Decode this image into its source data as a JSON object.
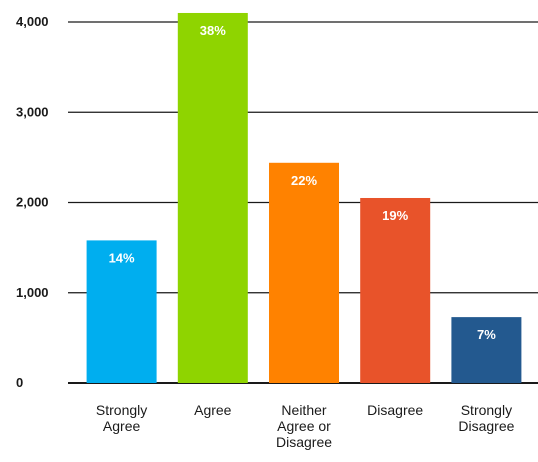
{
  "chart_data": {
    "type": "bar",
    "title": "",
    "xlabel": "",
    "ylabel": "",
    "ylim": [
      0,
      4000
    ],
    "yticks": [
      0,
      1000,
      2000,
      3000,
      4000
    ],
    "ytick_labels": [
      "0",
      "1,000",
      "2,000",
      "3,000",
      "4,000"
    ],
    "grid": true,
    "categories": [
      [
        "Strongly",
        "Agree"
      ],
      [
        "Agree"
      ],
      [
        "Neither",
        "Agree or",
        "Disagree"
      ],
      [
        "Disagree"
      ],
      [
        "Strongly",
        "Disagree"
      ]
    ],
    "values": [
      1580,
      4100,
      2440,
      2050,
      730
    ],
    "data_labels": [
      "14%",
      "38%",
      "22%",
      "19%",
      "7%"
    ],
    "colors": [
      "#00aeef",
      "#8fd400",
      "#ff8200",
      "#e8532a",
      "#23598f"
    ]
  }
}
